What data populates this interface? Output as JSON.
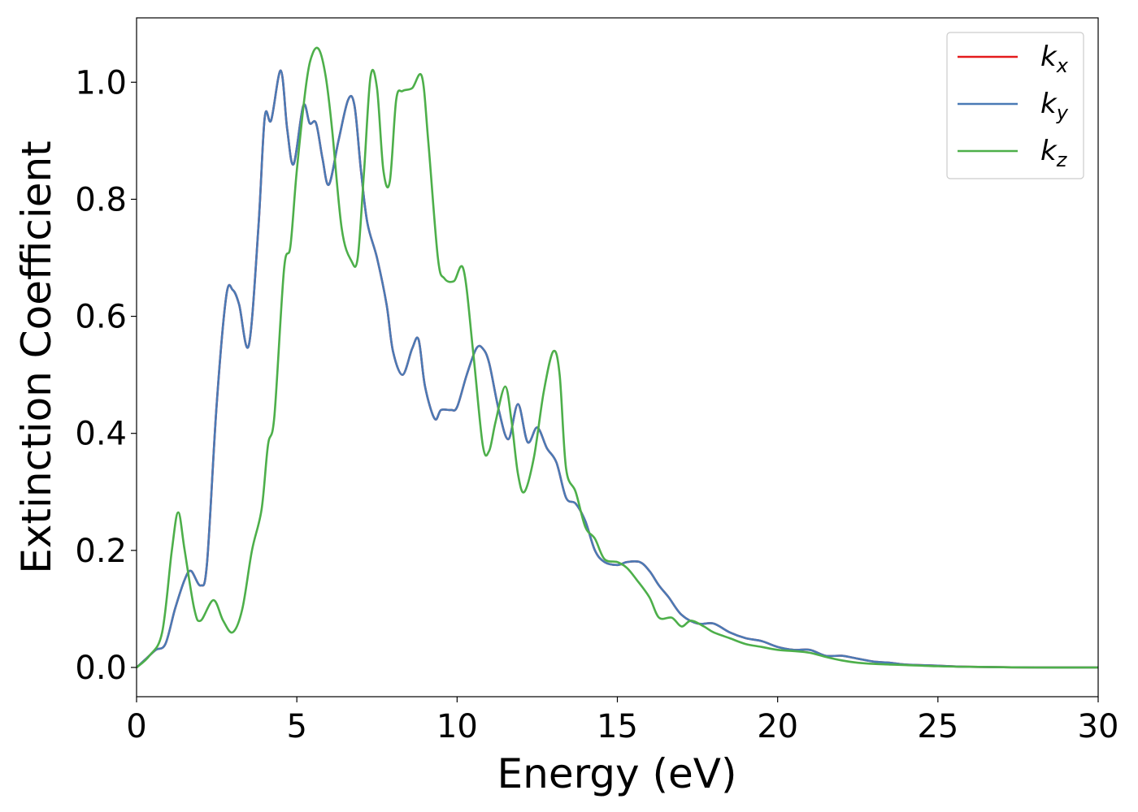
{
  "chart_data": {
    "type": "line",
    "xlabel": "Energy (eV)",
    "ylabel": "Extinction Coefficient",
    "xlim": [
      0,
      30
    ],
    "ylim": [
      -0.05,
      1.11
    ],
    "xticks": [
      0,
      5,
      10,
      15,
      20,
      25,
      30
    ],
    "xtick_labels": [
      "0",
      "5",
      "10",
      "15",
      "20",
      "25",
      "30"
    ],
    "yticks": [
      0.0,
      0.2,
      0.4,
      0.6,
      0.8,
      1.0
    ],
    "ytick_labels": [
      "0.0",
      "0.2",
      "0.4",
      "0.6",
      "0.8",
      "1.0"
    ],
    "grid": false,
    "legend_position": "top-right",
    "series": [
      {
        "name": "k_x",
        "legend_base": "k",
        "legend_sub": "x",
        "color": "#e41a1c",
        "x": [
          0,
          0.3,
          0.6,
          0.9,
          1.2,
          1.5,
          1.7,
          2.0,
          2.2,
          2.5,
          2.8,
          3.0,
          3.2,
          3.5,
          3.8,
          4.0,
          4.2,
          4.5,
          4.7,
          4.9,
          5.2,
          5.4,
          5.6,
          5.8,
          6.0,
          6.3,
          6.6,
          6.8,
          7.0,
          7.2,
          7.5,
          7.8,
          8.0,
          8.3,
          8.6,
          8.8,
          9.0,
          9.3,
          9.5,
          9.8,
          10.0,
          10.3,
          10.6,
          10.8,
          11.0,
          11.3,
          11.6,
          11.9,
          12.2,
          12.5,
          12.8,
          13.1,
          13.4,
          13.7,
          14.0,
          14.3,
          14.6,
          15.0,
          15.3,
          15.7,
          16.0,
          16.3,
          16.6,
          17.0,
          17.5,
          18.0,
          18.5,
          19.0,
          19.5,
          20.0,
          20.5,
          21.0,
          21.5,
          22.0,
          22.5,
          23.0,
          23.5,
          24.0,
          25.0,
          26.0,
          28.0,
          30.0
        ],
        "y": [
          0,
          0.015,
          0.03,
          0.04,
          0.1,
          0.15,
          0.165,
          0.14,
          0.18,
          0.45,
          0.635,
          0.645,
          0.62,
          0.55,
          0.75,
          0.94,
          0.935,
          1.02,
          0.92,
          0.86,
          0.96,
          0.93,
          0.93,
          0.87,
          0.825,
          0.9,
          0.97,
          0.96,
          0.85,
          0.76,
          0.7,
          0.62,
          0.54,
          0.5,
          0.545,
          0.56,
          0.48,
          0.425,
          0.44,
          0.44,
          0.445,
          0.5,
          0.545,
          0.545,
          0.52,
          0.44,
          0.39,
          0.45,
          0.385,
          0.41,
          0.375,
          0.35,
          0.29,
          0.28,
          0.25,
          0.2,
          0.18,
          0.175,
          0.18,
          0.18,
          0.165,
          0.14,
          0.12,
          0.09,
          0.075,
          0.075,
          0.06,
          0.05,
          0.045,
          0.035,
          0.03,
          0.03,
          0.02,
          0.02,
          0.015,
          0.01,
          0.008,
          0.005,
          0.003,
          0.001,
          0.0,
          0.0
        ]
      },
      {
        "name": "k_y",
        "legend_base": "k",
        "legend_sub": "y",
        "color": "#4a7ab5",
        "x": [
          0,
          0.3,
          0.6,
          0.9,
          1.2,
          1.5,
          1.7,
          2.0,
          2.2,
          2.5,
          2.8,
          3.0,
          3.2,
          3.5,
          3.8,
          4.0,
          4.2,
          4.5,
          4.7,
          4.9,
          5.2,
          5.4,
          5.6,
          5.8,
          6.0,
          6.3,
          6.6,
          6.8,
          7.0,
          7.2,
          7.5,
          7.8,
          8.0,
          8.3,
          8.6,
          8.8,
          9.0,
          9.3,
          9.5,
          9.8,
          10.0,
          10.3,
          10.6,
          10.8,
          11.0,
          11.3,
          11.6,
          11.9,
          12.2,
          12.5,
          12.8,
          13.1,
          13.4,
          13.7,
          14.0,
          14.3,
          14.6,
          15.0,
          15.3,
          15.7,
          16.0,
          16.3,
          16.6,
          17.0,
          17.5,
          18.0,
          18.5,
          19.0,
          19.5,
          20.0,
          20.5,
          21.0,
          21.5,
          22.0,
          22.5,
          23.0,
          23.5,
          24.0,
          25.0,
          26.0,
          28.0,
          30.0
        ],
        "y": [
          0,
          0.015,
          0.03,
          0.04,
          0.1,
          0.15,
          0.165,
          0.14,
          0.18,
          0.45,
          0.635,
          0.645,
          0.62,
          0.55,
          0.75,
          0.94,
          0.935,
          1.02,
          0.92,
          0.86,
          0.96,
          0.93,
          0.93,
          0.87,
          0.825,
          0.9,
          0.97,
          0.96,
          0.85,
          0.76,
          0.7,
          0.62,
          0.54,
          0.5,
          0.545,
          0.56,
          0.48,
          0.425,
          0.44,
          0.44,
          0.445,
          0.5,
          0.545,
          0.545,
          0.52,
          0.44,
          0.39,
          0.45,
          0.385,
          0.41,
          0.375,
          0.35,
          0.29,
          0.28,
          0.25,
          0.2,
          0.18,
          0.175,
          0.18,
          0.18,
          0.165,
          0.14,
          0.12,
          0.09,
          0.075,
          0.075,
          0.06,
          0.05,
          0.045,
          0.035,
          0.03,
          0.03,
          0.02,
          0.02,
          0.015,
          0.01,
          0.008,
          0.005,
          0.003,
          0.001,
          0.0,
          0.0
        ]
      },
      {
        "name": "k_z",
        "legend_base": "k",
        "legend_sub": "z",
        "color": "#4daf4a",
        "x": [
          0,
          0.4,
          0.8,
          1.1,
          1.3,
          1.5,
          1.8,
          2.0,
          2.4,
          2.7,
          3.0,
          3.3,
          3.6,
          3.9,
          4.1,
          4.3,
          4.6,
          4.8,
          5.0,
          5.3,
          5.5,
          5.7,
          5.9,
          6.1,
          6.4,
          6.7,
          6.9,
          7.1,
          7.3,
          7.5,
          7.7,
          7.9,
          8.1,
          8.3,
          8.6,
          8.9,
          9.1,
          9.4,
          9.6,
          9.9,
          10.2,
          10.5,
          10.8,
          11.0,
          11.2,
          11.5,
          11.7,
          11.9,
          12.1,
          12.4,
          12.7,
          13.0,
          13.2,
          13.4,
          13.7,
          14.0,
          14.3,
          14.6,
          15.0,
          15.3,
          15.6,
          16.0,
          16.3,
          16.7,
          17.0,
          17.3,
          17.7,
          18.0,
          18.5,
          19.0,
          19.5,
          20.0,
          20.5,
          21.0,
          21.5,
          22.0,
          22.5,
          23.0,
          23.5,
          24.0,
          25.0,
          26.0,
          28.0,
          30.0
        ],
        "y": [
          0,
          0.02,
          0.06,
          0.2,
          0.265,
          0.2,
          0.1,
          0.08,
          0.115,
          0.08,
          0.06,
          0.1,
          0.2,
          0.27,
          0.38,
          0.43,
          0.68,
          0.72,
          0.85,
          1.0,
          1.05,
          1.055,
          1.01,
          0.92,
          0.75,
          0.695,
          0.7,
          0.85,
          1.01,
          0.99,
          0.85,
          0.83,
          0.97,
          0.985,
          0.99,
          1.01,
          0.9,
          0.7,
          0.665,
          0.66,
          0.68,
          0.54,
          0.38,
          0.37,
          0.42,
          0.48,
          0.42,
          0.33,
          0.3,
          0.36,
          0.47,
          0.54,
          0.5,
          0.34,
          0.3,
          0.24,
          0.22,
          0.185,
          0.18,
          0.17,
          0.15,
          0.12,
          0.085,
          0.085,
          0.07,
          0.08,
          0.07,
          0.06,
          0.05,
          0.04,
          0.035,
          0.03,
          0.028,
          0.025,
          0.018,
          0.012,
          0.008,
          0.006,
          0.005,
          0.004,
          0.002,
          0.001,
          0.0,
          0.0
        ]
      }
    ]
  }
}
